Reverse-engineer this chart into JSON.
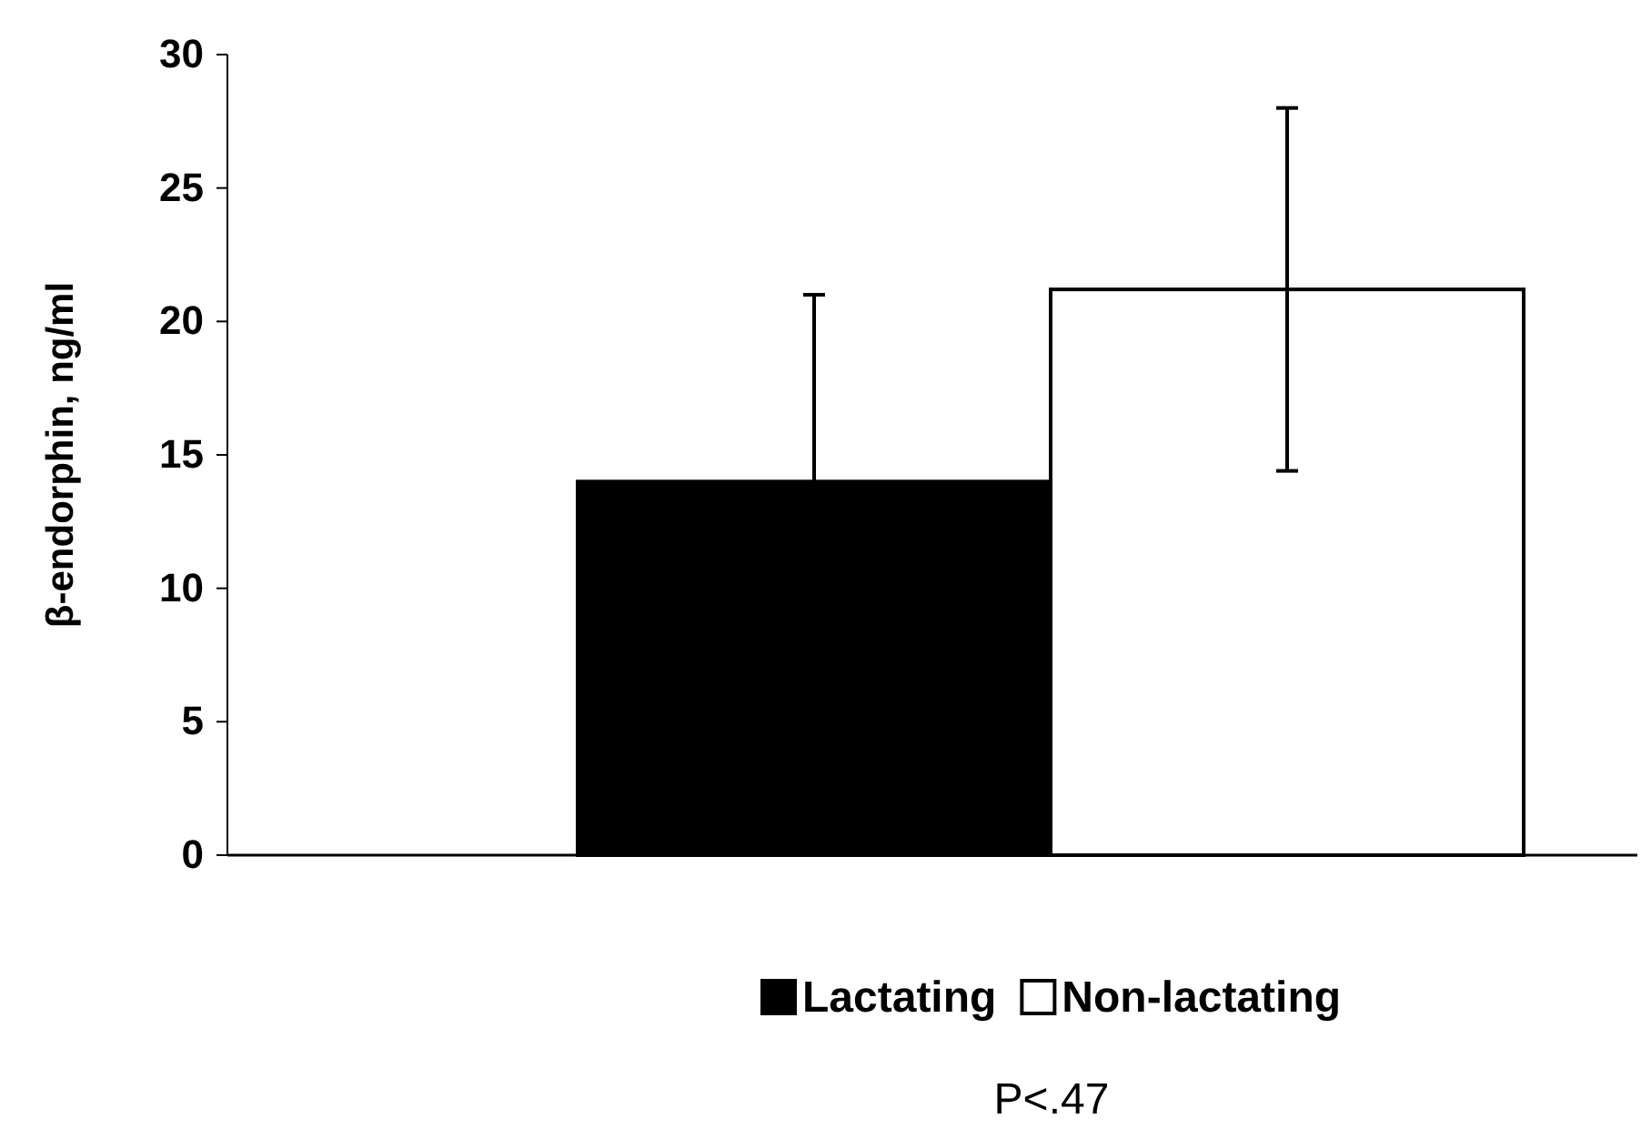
{
  "chart_data": {
    "type": "bar",
    "categories": [
      null
    ],
    "ylabel": "β-endorphin, ng/ml",
    "series": [
      {
        "name": "Lactating",
        "color": "#000000",
        "values": [
          14.0
        ],
        "errors": [
          7.0
        ]
      },
      {
        "name": "Non-lactating",
        "color": "#ffffff",
        "values": [
          21.2
        ],
        "errors": [
          6.8
        ]
      }
    ],
    "ylim": [
      0,
      30
    ],
    "yticks": [
      0,
      5,
      10,
      15,
      20,
      25,
      30
    ],
    "grid": false,
    "legend": "bottom",
    "annotations": [
      "P<.47"
    ]
  }
}
